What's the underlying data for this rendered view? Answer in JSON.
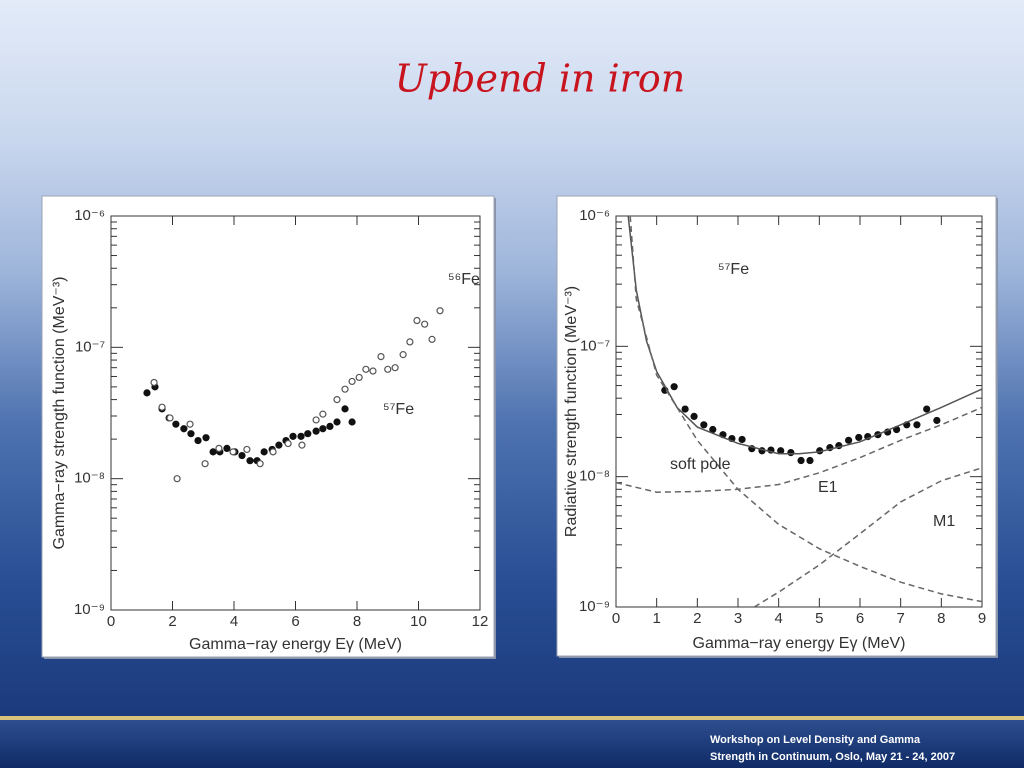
{
  "title": "Upbend in iron",
  "footer": [
    "Workshop on  Level Density and  Gamma",
    "Strength in Continuum, Oslo, May 21 - 24, 2007"
  ],
  "chart_data": [
    {
      "type": "scatter",
      "x_label": "Gamma−ray energy Eγ (MeV)",
      "y_label": "Gamma−ray strength function (MeV⁻³)",
      "log_y": true,
      "xlim": [
        0,
        12
      ],
      "xticks": [
        0,
        2,
        4,
        6,
        8,
        10,
        12
      ],
      "ylim": [
        1e-09,
        1e-06
      ],
      "yticks": [
        {
          "value": 1e-09,
          "label": "10⁻⁹"
        },
        {
          "value": 1e-08,
          "label": "10⁻⁸"
        },
        {
          "value": 1e-07,
          "label": "10⁻⁷"
        },
        {
          "value": 1e-06,
          "label": "10⁻⁶"
        }
      ],
      "series": [
        {
          "name": "⁵⁷Fe",
          "color": "#111111",
          "marker": "filled",
          "x": [
            1.17,
            1.43,
            1.66,
            1.89,
            2.11,
            2.37,
            2.6,
            2.83,
            3.09,
            3.32,
            3.54,
            3.77,
            4.03,
            4.26,
            4.52,
            4.75,
            4.98,
            5.24,
            5.46,
            5.69,
            5.92,
            6.18,
            6.4,
            6.67,
            6.89,
            7.12,
            7.35,
            7.61,
            7.84
          ],
          "values": [
            4.5e-08,
            5e-08,
            3.4e-08,
            2.9e-08,
            2.6e-08,
            2.4e-08,
            2.2e-08,
            1.95e-08,
            2.05e-08,
            1.6e-08,
            1.6e-08,
            1.7e-08,
            1.6e-08,
            1.5e-08,
            1.37e-08,
            1.37e-08,
            1.6e-08,
            1.67e-08,
            1.8e-08,
            1.95e-08,
            2.1e-08,
            2.1e-08,
            2.2e-08,
            2.3e-08,
            2.4e-08,
            2.5e-08,
            2.7e-08,
            3.4e-08,
            2.7e-08
          ]
        },
        {
          "name": "⁵⁶Fe",
          "color": "#555555",
          "marker": "open",
          "x": [
            1.4,
            1.66,
            1.92,
            2.15,
            2.57,
            3.06,
            3.51,
            3.97,
            4.42,
            4.85,
            5.27,
            5.76,
            6.21,
            6.67,
            6.89,
            7.35,
            7.61,
            7.84,
            8.07,
            8.29,
            8.52,
            8.78,
            9.0,
            9.24,
            9.5,
            9.72,
            9.95,
            10.2,
            10.44,
            10.7
          ],
          "values": [
            5.4e-08,
            3.5e-08,
            2.9e-08,
            1e-08,
            2.6e-08,
            1.3e-08,
            1.7e-08,
            1.6e-08,
            1.67e-08,
            1.3e-08,
            1.6e-08,
            1.85e-08,
            1.8e-08,
            2.8e-08,
            3.1e-08,
            4e-08,
            4.8e-08,
            5.5e-08,
            5.9e-08,
            6.8e-08,
            6.6e-08,
            8.5e-08,
            6.8e-08,
            7e-08,
            8.8e-08,
            1.1e-07,
            1.6e-07,
            1.5e-07,
            1.15e-07,
            1.9e-07
          ]
        }
      ]
    },
    {
      "type": "scatter",
      "x_label": "Gamma−ray energy Eγ (MeV)",
      "y_label": "Radiative strength function (MeV⁻³)",
      "log_y": true,
      "xlim": [
        0,
        9
      ],
      "xticks": [
        0,
        1,
        2,
        3,
        4,
        5,
        6,
        7,
        8,
        9
      ],
      "ylim": [
        1e-09,
        1e-06
      ],
      "yticks": [
        {
          "value": 1e-09,
          "label": "10⁻⁹"
        },
        {
          "value": 1e-08,
          "label": "10⁻⁸"
        },
        {
          "value": 1e-07,
          "label": "10⁻⁷"
        },
        {
          "value": 1e-06,
          "label": "10⁻⁶"
        }
      ],
      "series": [
        {
          "name": "⁵⁷Fe",
          "color": "#111111",
          "marker": "filled",
          "x": [
            1.2,
            1.43,
            1.7,
            1.92,
            2.16,
            2.38,
            2.63,
            2.85,
            3.1,
            3.34,
            3.59,
            3.81,
            4.05,
            4.3,
            4.55,
            4.77,
            5.01,
            5.26,
            5.48,
            5.72,
            5.97,
            6.19,
            6.44,
            6.68,
            6.9,
            7.15,
            7.4,
            7.64,
            7.89
          ],
          "values": [
            4.6e-08,
            4.9e-08,
            3.3e-08,
            2.9e-08,
            2.5e-08,
            2.3e-08,
            2.1e-08,
            1.96e-08,
            1.93e-08,
            1.64e-08,
            1.58e-08,
            1.6e-08,
            1.58e-08,
            1.53e-08,
            1.33e-08,
            1.33e-08,
            1.58e-08,
            1.67e-08,
            1.73e-08,
            1.9e-08,
            2e-08,
            2.03e-08,
            2.1e-08,
            2.2e-08,
            2.3e-08,
            2.5e-08,
            2.5e-08,
            3.3e-08,
            2.7e-08
          ]
        },
        {
          "color": "#555555",
          "marker": "line",
          "x": [
            0.3,
            0.5,
            0.75,
            1.0,
            1.5,
            2,
            3,
            4,
            4.5,
            5,
            6,
            7,
            8,
            9
          ],
          "values": [
            1e-06,
            2.7e-07,
            1.1e-07,
            6.4e-08,
            3.4e-08,
            2.4e-08,
            1.8e-08,
            1.5e-08,
            1.5e-08,
            1.55e-08,
            1.85e-08,
            2.5e-08,
            3.4e-08,
            4.7e-08
          ]
        },
        {
          "name": "E1",
          "color": "#666666",
          "marker": "dashed",
          "x": [
            0,
            1,
            2,
            3,
            4,
            5,
            6,
            7,
            8,
            9
          ],
          "values": [
            9e-09,
            7.6e-09,
            7.7e-09,
            8e-09,
            8.7e-09,
            1.07e-08,
            1.4e-08,
            1.9e-08,
            2.5e-08,
            3.4e-08
          ]
        },
        {
          "name": "soft pole",
          "color": "#666666",
          "marker": "dashed",
          "x": [
            0.35,
            0.5,
            1,
            1.5,
            2,
            3,
            4,
            5,
            6,
            7,
            8,
            9
          ],
          "values": [
            1e-06,
            2.3e-07,
            6e-08,
            3.4e-08,
            1.9e-08,
            8e-09,
            4.3e-09,
            2.8e-09,
            2.05e-09,
            1.55e-09,
            1.26e-09,
            1.1e-09
          ]
        },
        {
          "name": "M1",
          "color": "#666666",
          "marker": "dashed",
          "x": [
            3.4,
            4,
            5,
            6,
            7,
            8,
            9
          ],
          "values": [
            1e-09,
            1.3e-09,
            2.1e-09,
            3.65e-09,
            6.4e-09,
            9.3e-09,
            1.17e-08
          ]
        }
      ]
    }
  ]
}
